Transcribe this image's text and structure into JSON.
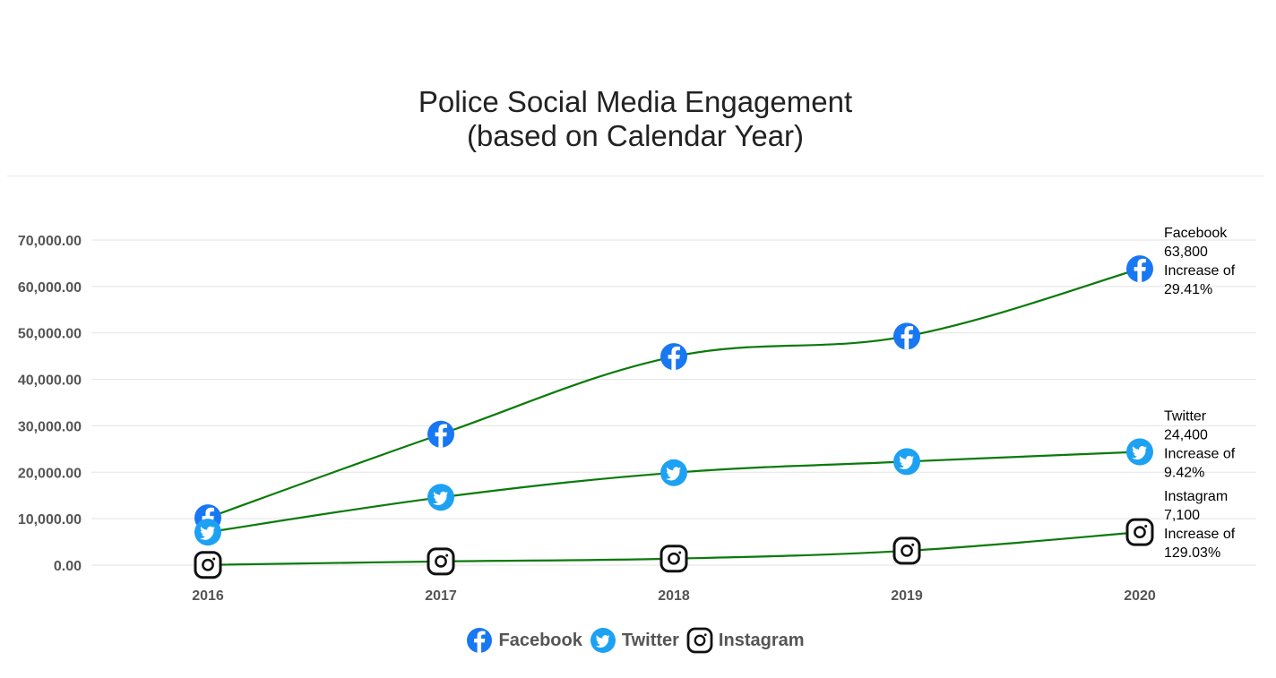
{
  "chart_data": {
    "type": "line",
    "title": "Police Social Media Engagement\n(based on Calendar Year)",
    "xlabel": "",
    "ylabel": "",
    "categories": [
      "2016",
      "2017",
      "2018",
      "2019",
      "2020"
    ],
    "ylim": [
      0,
      70000
    ],
    "yticks": [
      "0.00",
      "10,000.00",
      "20,000.00",
      "30,000.00",
      "40,000.00",
      "50,000.00",
      "60,000.00",
      "70,000.00"
    ],
    "ytick_values": [
      0,
      10000,
      20000,
      30000,
      40000,
      50000,
      60000,
      70000
    ],
    "grid": true,
    "legend_position": "bottom-center",
    "line_color": "#0a7a0a",
    "series": [
      {
        "name": "Facebook",
        "icon": "facebook-icon",
        "color": "#1877f2",
        "values": [
          10200,
          28200,
          44900,
          49300,
          63800
        ],
        "annotation": [
          "Facebook",
          "63,800",
          "Increase of",
          "29.41%"
        ]
      },
      {
        "name": "Twitter",
        "icon": "twitter-icon",
        "color": "#1da1f2",
        "values": [
          7100,
          14600,
          19900,
          22300,
          24400
        ],
        "annotation": [
          "Twitter",
          "24,400",
          "Increase of",
          "9.42%"
        ]
      },
      {
        "name": "Instagram",
        "icon": "instagram-icon",
        "color": "#111111",
        "values": [
          50,
          800,
          1400,
          3100,
          7100
        ],
        "annotation": [
          "Instagram",
          "7,100",
          "Increase of",
          "129.03%"
        ]
      }
    ]
  }
}
